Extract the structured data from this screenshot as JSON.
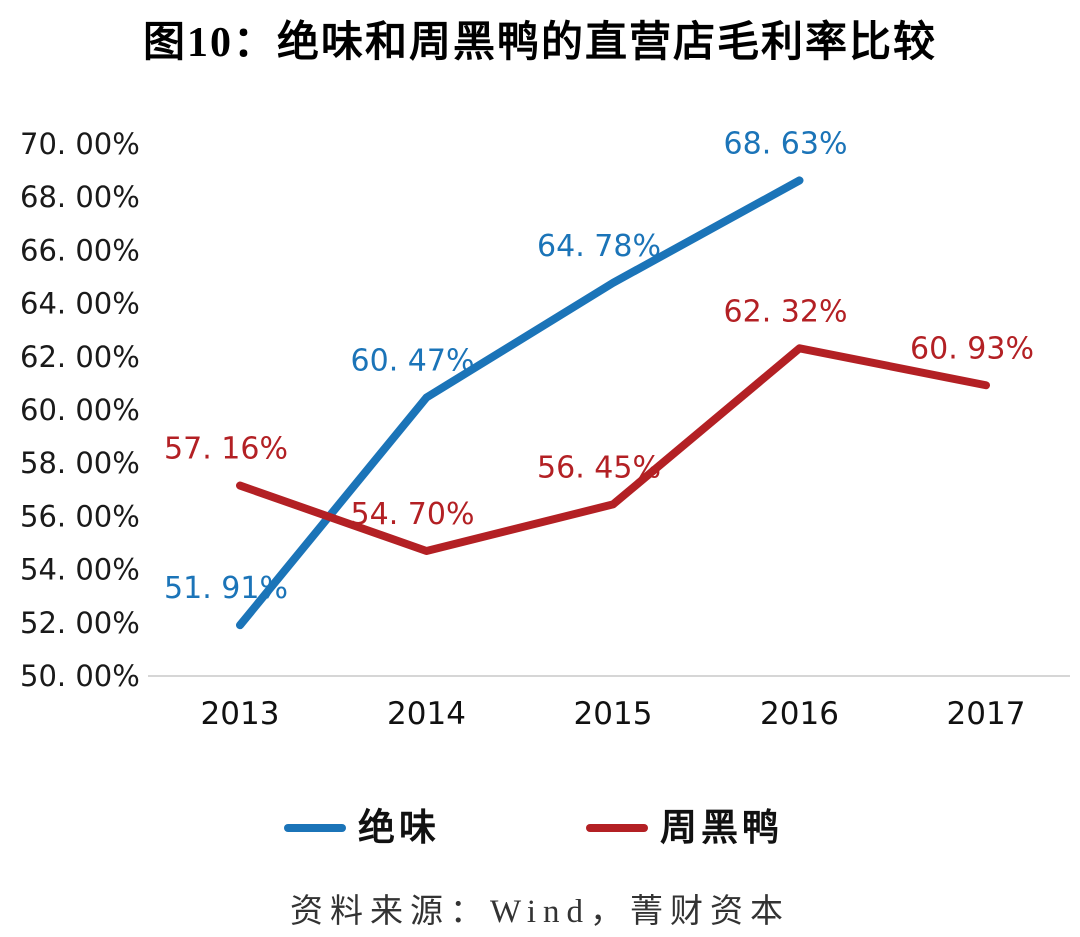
{
  "title": "图10：绝味和周黑鸭的直营店毛利率比较",
  "chart_data": {
    "type": "line",
    "x": [
      "2013",
      "2014",
      "2015",
      "2016",
      "2017"
    ],
    "series": [
      {
        "name": "绝味",
        "color": "#1B74B8",
        "values": [
          51.91,
          60.47,
          64.78,
          68.63,
          null
        ],
        "labels": [
          "51. 91%",
          "60. 47%",
          "64. 78%",
          "68. 63%",
          null
        ]
      },
      {
        "name": "周黑鸭",
        "color": "#B32024",
        "values": [
          57.16,
          54.7,
          56.45,
          62.32,
          60.93
        ],
        "labels": [
          "57. 16%",
          "54. 70%",
          "56. 45%",
          "62. 32%",
          "60. 93%"
        ]
      }
    ],
    "title": "图10：绝味和周黑鸭的直营店毛利率比较",
    "xlabel": "",
    "ylabel": "",
    "ylim": [
      50,
      70
    ],
    "ytick_step": 2,
    "ytick_labels": [
      "50. 00%",
      "52. 00%",
      "54. 00%",
      "56. 00%",
      "58. 00%",
      "60. 00%",
      "62. 00%",
      "64. 00%",
      "66. 00%",
      "68. 00%",
      "70. 00%"
    ],
    "grid": false,
    "legend_position": "bottom",
    "axis_line_color": "#d6d6d6",
    "tick_text_color": "#1a1a1a"
  },
  "legend": {
    "items": [
      {
        "label": "绝味",
        "color": "#1B74B8"
      },
      {
        "label": "周黑鸭",
        "color": "#B32024"
      }
    ]
  },
  "source": "资料来源：Wind，菁财资本"
}
